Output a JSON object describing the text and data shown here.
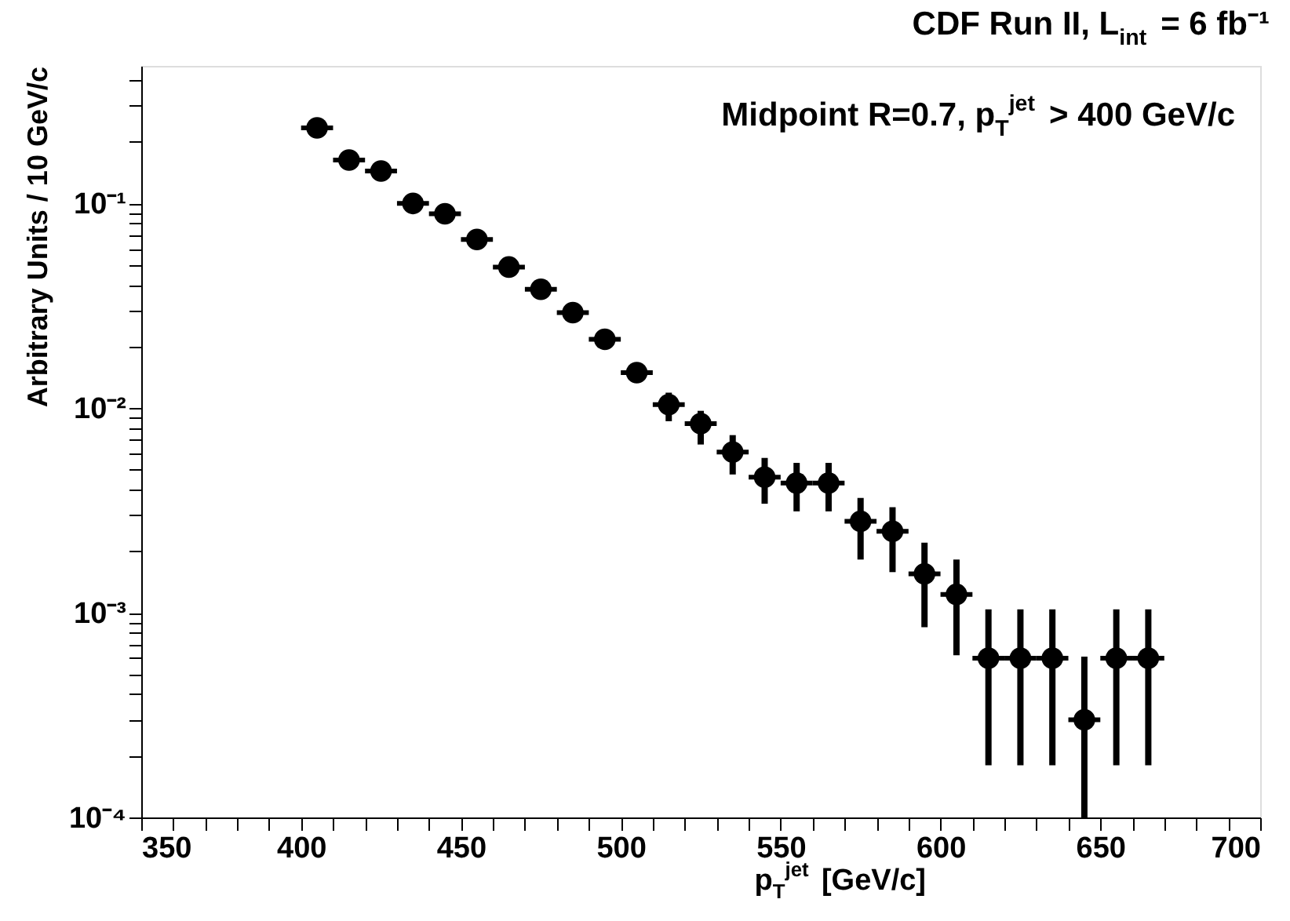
{
  "chart_data": {
    "type": "scatter",
    "title": "CDF Run II, L$_{int}$ = 6 fb⁻¹",
    "annotations": [
      "Midpoint R=0.7, p$_{T}$$^{jet}$ > 400 GeV/c"
    ],
    "xlabel": "p$_{T}$$^{jet}$ [GeV/c]",
    "ylabel": "Arbitrary Units / 10 GeV/c",
    "x": [
      405,
      415,
      425,
      435,
      445,
      455,
      465,
      475,
      485,
      495,
      505,
      515,
      525,
      535,
      545,
      555,
      565,
      575,
      585,
      595,
      605,
      615,
      625,
      635,
      645,
      655,
      665
    ],
    "series": [
      {
        "color": "#000000",
        "values": [
          0.234,
          0.163,
          0.144,
          0.1,
          0.089,
          0.0667,
          0.0489,
          0.0381,
          0.0293,
          0.0217,
          0.0149,
          0.0104,
          0.0084,
          0.0061,
          0.0046,
          0.0043,
          0.0043,
          0.0028,
          0.0025,
          0.00155,
          0.00123,
          0.0006,
          0.0006,
          0.0006,
          0.0003,
          0.0006,
          0.0006
        ],
        "errors": [
          null,
          null,
          null,
          null,
          null,
          null,
          null,
          null,
          null,
          null,
          null,
          [
            0.00863,
            0.0119
          ],
          [
            0.00664,
            0.0097
          ],
          [
            0.00474,
            0.00738
          ],
          [
            0.00341,
            0.00571
          ],
          [
            0.00313,
            0.0054
          ],
          [
            0.00313,
            0.0054
          ],
          [
            0.00182,
            0.00364
          ],
          [
            0.00158,
            0.00328
          ],
          [
            0.00085,
            0.0022
          ],
          [
            0.00062,
            0.00182
          ],
          [
            0.00018,
            0.00104
          ],
          [
            0.00018,
            0.00104
          ],
          [
            0.00018,
            0.00104
          ],
          [
            0.0001,
            0.00061
          ],
          [
            0.00018,
            0.00104
          ],
          [
            0.00018,
            0.00104
          ]
        ],
        "xerrors": [
          5,
          5,
          5,
          5,
          5,
          5,
          5,
          5,
          5,
          5,
          5,
          5,
          5,
          5,
          5,
          5,
          5,
          5,
          5,
          5,
          5,
          5,
          5,
          5,
          5,
          5,
          5
        ]
      }
    ],
    "xlim": [
      350,
      700
    ],
    "xticks": [
      350,
      {
        "value": 360,
        "label": null
      },
      {
        "value": 370,
        "label": null
      },
      {
        "value": 380,
        "label": null
      },
      {
        "value": 390,
        "label": null
      },
      400,
      {
        "value": 410,
        "label": null
      },
      {
        "value": 420,
        "label": null
      },
      {
        "value": 430,
        "label": null
      },
      {
        "value": 440,
        "label": null
      },
      450,
      {
        "value": 460,
        "label": null
      },
      {
        "value": 470,
        "label": null
      },
      {
        "value": 480,
        "label": null
      },
      {
        "value": 490,
        "label": null
      },
      500,
      {
        "value": 510,
        "label": null
      },
      {
        "value": 520,
        "label": null
      },
      {
        "value": 530,
        "label": null
      },
      {
        "value": 540,
        "label": null
      },
      550,
      {
        "value": 560,
        "label": null
      },
      {
        "value": 570,
        "label": null
      },
      {
        "value": 580,
        "label": null
      },
      {
        "value": 590,
        "label": null
      },
      600,
      {
        "value": 610,
        "label": null
      },
      {
        "value": 620,
        "label": null
      },
      {
        "value": 630,
        "label": null
      },
      {
        "value": 640,
        "label": null
      },
      650,
      {
        "value": 660,
        "label": null
      },
      {
        "value": 670,
        "label": null
      },
      {
        "value": 680,
        "label": null
      },
      {
        "value": 690,
        "label": null
      },
      700
    ],
    "ylim": [
      0.0001,
      0.47
    ],
    "yticks": [
      {
        "value": 0.0001,
        "label": "10⁻⁴"
      },
      {
        "value": 0.0002,
        "label": null
      },
      {
        "value": 0.0003,
        "label": null
      },
      {
        "value": 0.0004,
        "label": null
      },
      {
        "value": 0.0005,
        "label": null
      },
      {
        "value": 0.0006,
        "label": null
      },
      {
        "value": 0.0007,
        "label": null
      },
      {
        "value": 0.0008,
        "label": null
      },
      {
        "value": 0.0009,
        "label": null
      },
      {
        "value": 0.001,
        "label": "10⁻³"
      },
      {
        "value": 0.002,
        "label": null
      },
      {
        "value": 0.003,
        "label": null
      },
      {
        "value": 0.004,
        "label": null
      },
      {
        "value": 0.005,
        "label": null
      },
      {
        "value": 0.006,
        "label": null
      },
      {
        "value": 0.007,
        "label": null
      },
      {
        "value": 0.008,
        "label": null
      },
      {
        "value": 0.009,
        "label": null
      },
      {
        "value": 0.01,
        "label": "10⁻²"
      },
      {
        "value": 0.02,
        "label": null
      },
      {
        "value": 0.03,
        "label": null
      },
      {
        "value": 0.04,
        "label": null
      },
      {
        "value": 0.05,
        "label": null
      },
      {
        "value": 0.06,
        "label": null
      },
      {
        "value": 0.07,
        "label": null
      },
      {
        "value": 0.08,
        "label": null
      },
      {
        "value": 0.09,
        "label": null
      },
      {
        "value": 0.1,
        "label": "10⁻¹"
      },
      {
        "value": 0.2,
        "label": null
      },
      {
        "value": 0.3,
        "label": null
      },
      {
        "value": 0.4,
        "label": null
      }
    ],
    "log": "y",
    "grid": false,
    "marker": "circle"
  }
}
